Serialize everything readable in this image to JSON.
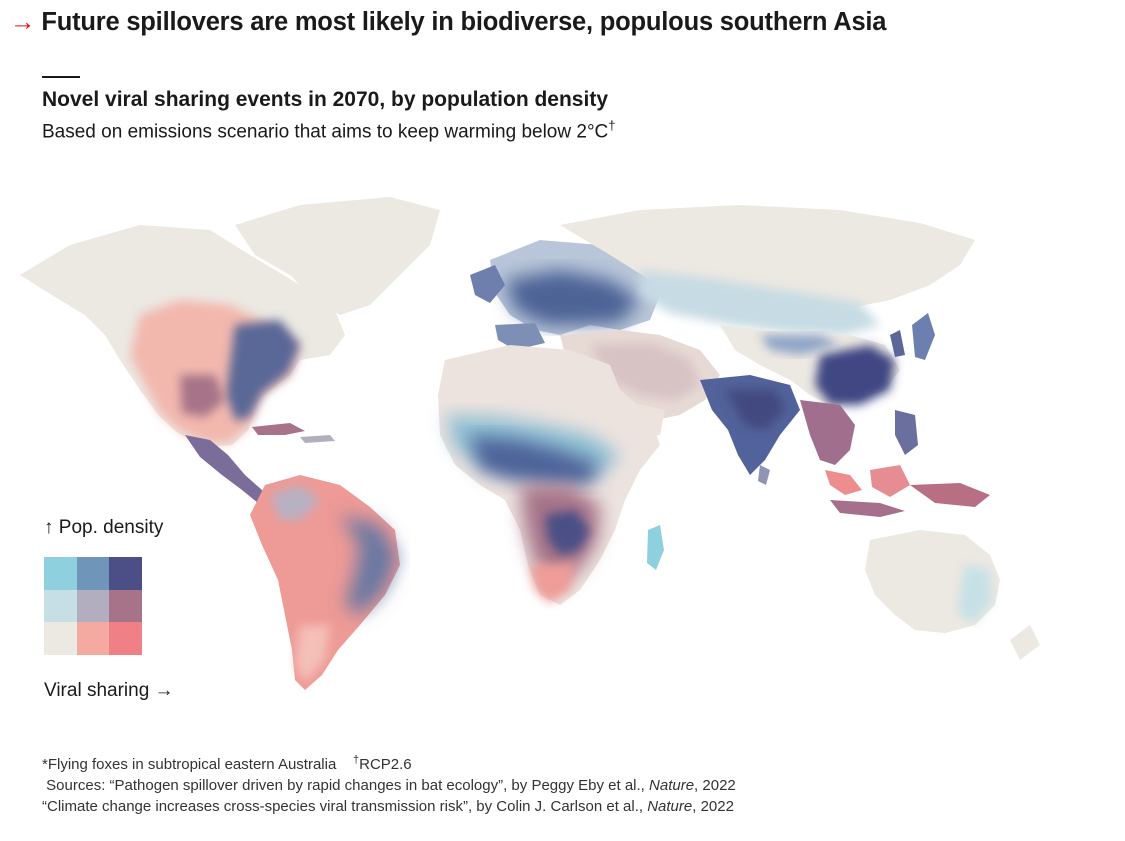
{
  "headline": {
    "arrow": "→",
    "text": "Future spillovers are most likely in biodiverse, populous southern Asia",
    "accent_color": "#e3120b"
  },
  "chart": {
    "title": "Novel viral sharing events in 2070, by population density",
    "subtitle": "Based on emissions scenario that aims to keep warming below 2°C",
    "subtitle_mark": "†"
  },
  "legend": {
    "y_label": "↑ Pop. density",
    "x_label": "Viral sharing →",
    "colors": [
      [
        "#8fd0df",
        "#6f95b8",
        "#4b4f86"
      ],
      [
        "#c5dfe4",
        "#b2adbf",
        "#a67388"
      ],
      [
        "#ece8e2",
        "#f4a9a1",
        "#ef8085"
      ]
    ]
  },
  "footnotes": {
    "note_flying_foxes": "*Flying foxes in subtropical eastern Australia",
    "note_rcp_mark": "†",
    "note_rcp": "RCP2.6",
    "source1_prefix": "Sources: “Pathogen spillover driven by rapid changes in bat ecology”, by Peggy Eby et al., ",
    "source1_journal": "Nature",
    "source1_year": ", 2022",
    "source2_prefix": "“Climate change increases cross-species viral transmission risk”, by Colin J. Carlson et al., ",
    "source2_journal": "Nature",
    "source2_year": ", 2022"
  }
}
